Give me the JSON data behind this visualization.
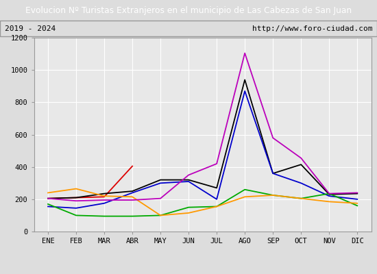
{
  "title": "Evolucion Nº Turistas Extranjeros en el municipio de Las Cabezas de San Juan",
  "subtitle_left": "2019 - 2024",
  "subtitle_right": "http://www.foro-ciudad.com",
  "months": [
    "ENE",
    "FEB",
    "MAR",
    "ABR",
    "MAY",
    "JUN",
    "JUL",
    "AGO",
    "SEP",
    "OCT",
    "NOV",
    "DIC"
  ],
  "series": {
    "2024": [
      205,
      210,
      215,
      405,
      null,
      null,
      null,
      null,
      null,
      null,
      null,
      null
    ],
    "2023": [
      205,
      210,
      235,
      250,
      320,
      320,
      270,
      940,
      360,
      415,
      230,
      235
    ],
    "2022": [
      155,
      145,
      175,
      240,
      300,
      310,
      200,
      870,
      360,
      300,
      220,
      200
    ],
    "2021": [
      170,
      100,
      95,
      95,
      100,
      150,
      155,
      260,
      225,
      205,
      235,
      160
    ],
    "2020": [
      240,
      265,
      220,
      215,
      100,
      115,
      155,
      215,
      225,
      205,
      185,
      175
    ],
    "2019": [
      205,
      190,
      195,
      195,
      205,
      350,
      420,
      1105,
      580,
      455,
      235,
      240
    ]
  },
  "colors": {
    "2024": "#dd0000",
    "2023": "#000000",
    "2022": "#0000cc",
    "2021": "#00aa00",
    "2020": "#ff9900",
    "2019": "#bb00bb"
  },
  "ylim": [
    0,
    1200
  ],
  "yticks": [
    0,
    200,
    400,
    600,
    800,
    1000,
    1200
  ],
  "fig_bg": "#dddddd",
  "plot_bg": "#e8e8e8",
  "title_bg": "#4488dd",
  "title_color": "#ffffff",
  "subtitle_bg": "#d8d8d8",
  "border_color": "#999999",
  "grid_color": "#ffffff",
  "legend_bg": "#f0f0f0"
}
